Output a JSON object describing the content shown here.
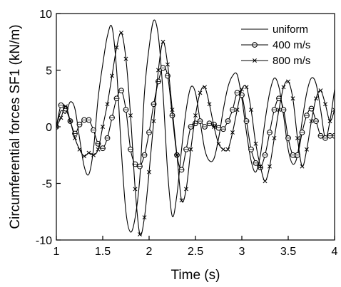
{
  "chart_data": {
    "type": "line",
    "xlabel": "Time (s)",
    "ylabel": "Circumferential forces SF1 (kN/m)",
    "xlim": [
      1,
      4
    ],
    "ylim": [
      -10,
      10
    ],
    "grid": false,
    "legend_position": "top-right",
    "x_ticks": [
      {
        "value": 1,
        "label": "1"
      },
      {
        "value": 1.5,
        "label": "1.5"
      },
      {
        "value": 2,
        "label": "2"
      },
      {
        "value": 2.5,
        "label": "2.5"
      },
      {
        "value": 3,
        "label": "3"
      },
      {
        "value": 3.5,
        "label": "3.5"
      },
      {
        "value": 4,
        "label": "4"
      }
    ],
    "y_ticks": [
      {
        "value": -10,
        "label": "-10"
      },
      {
        "value": -5,
        "label": "-5"
      },
      {
        "value": 0,
        "label": "0"
      },
      {
        "value": 5,
        "label": "5"
      },
      {
        "value": 10,
        "label": "10"
      }
    ],
    "series": [
      {
        "name": "uniform",
        "marker": "none",
        "points": [
          [
            1.0,
            0.0
          ],
          [
            1.05,
            1.4
          ],
          [
            1.1,
            1.2
          ],
          [
            1.15,
            2.2
          ],
          [
            1.2,
            1.6
          ],
          [
            1.25,
            -1.0
          ],
          [
            1.3,
            -3.5
          ],
          [
            1.35,
            -4.2
          ],
          [
            1.4,
            -2.0
          ],
          [
            1.45,
            2.5
          ],
          [
            1.5,
            5.5
          ],
          [
            1.55,
            8.0
          ],
          [
            1.6,
            8.8
          ],
          [
            1.65,
            5.0
          ],
          [
            1.7,
            -2.0
          ],
          [
            1.75,
            -7.5
          ],
          [
            1.8,
            -9.3
          ],
          [
            1.85,
            -8.0
          ],
          [
            1.9,
            -4.5
          ],
          [
            1.95,
            3.0
          ],
          [
            2.0,
            7.0
          ],
          [
            2.05,
            9.4
          ],
          [
            2.1,
            8.0
          ],
          [
            2.15,
            3.0
          ],
          [
            2.2,
            -4.0
          ],
          [
            2.25,
            -7.9
          ],
          [
            2.3,
            -6.0
          ],
          [
            2.35,
            -2.0
          ],
          [
            2.4,
            1.5
          ],
          [
            2.45,
            3.5
          ],
          [
            2.5,
            3.0
          ],
          [
            2.55,
            0.5
          ],
          [
            2.6,
            -2.0
          ],
          [
            2.65,
            -3.0
          ],
          [
            2.7,
            -2.8
          ],
          [
            2.75,
            -1.0
          ],
          [
            2.8,
            1.5
          ],
          [
            2.85,
            3.5
          ],
          [
            2.9,
            4.5
          ],
          [
            2.95,
            4.6
          ],
          [
            3.0,
            2.5
          ],
          [
            3.05,
            -0.5
          ],
          [
            3.1,
            -3.0
          ],
          [
            3.15,
            -4.0
          ],
          [
            3.2,
            -2.5
          ],
          [
            3.25,
            0.5
          ],
          [
            3.3,
            3.0
          ],
          [
            3.35,
            4.3
          ],
          [
            3.4,
            3.5
          ],
          [
            3.45,
            1.0
          ],
          [
            3.5,
            -2.0
          ],
          [
            3.55,
            -3.3
          ],
          [
            3.6,
            -2.5
          ],
          [
            3.65,
            0.5
          ],
          [
            3.7,
            3.0
          ],
          [
            3.75,
            4.3
          ],
          [
            3.8,
            3.8
          ],
          [
            3.85,
            1.5
          ],
          [
            3.9,
            -1.0
          ],
          [
            3.95,
            0.5
          ],
          [
            4.0,
            3.3
          ]
        ]
      },
      {
        "name": "400 m/s",
        "marker": "circle",
        "points": [
          [
            1.0,
            0.0
          ],
          [
            1.05,
            1.9
          ],
          [
            1.1,
            1.6
          ],
          [
            1.15,
            0.5
          ],
          [
            1.2,
            -0.6
          ],
          [
            1.25,
            0.2
          ],
          [
            1.3,
            0.6
          ],
          [
            1.35,
            0.6
          ],
          [
            1.4,
            -0.3
          ],
          [
            1.45,
            -1.5
          ],
          [
            1.5,
            -1.9
          ],
          [
            1.55,
            -1.0
          ],
          [
            1.6,
            0.8
          ],
          [
            1.65,
            2.5
          ],
          [
            1.7,
            3.2
          ],
          [
            1.75,
            1.5
          ],
          [
            1.8,
            -2.0
          ],
          [
            1.85,
            -3.3
          ],
          [
            1.9,
            -3.5
          ],
          [
            1.95,
            -2.5
          ],
          [
            2.0,
            -0.5
          ],
          [
            2.05,
            2.0
          ],
          [
            2.1,
            4.0
          ],
          [
            2.15,
            5.2
          ],
          [
            2.2,
            4.5
          ],
          [
            2.25,
            1.0
          ],
          [
            2.3,
            -2.5
          ],
          [
            2.35,
            -3.8
          ],
          [
            2.4,
            -2.0
          ],
          [
            2.45,
            0.0
          ],
          [
            2.5,
            0.3
          ],
          [
            2.55,
            0.5
          ],
          [
            2.6,
            0.0
          ],
          [
            2.65,
            0.3
          ],
          [
            2.7,
            0.2
          ],
          [
            2.75,
            -0.1
          ],
          [
            2.8,
            -0.2
          ],
          [
            2.85,
            0.5
          ],
          [
            2.9,
            1.5
          ],
          [
            2.95,
            3.0
          ],
          [
            3.0,
            2.8
          ],
          [
            3.05,
            0.5
          ],
          [
            3.1,
            -2.0
          ],
          [
            3.15,
            -3.2
          ],
          [
            3.2,
            -3.6
          ],
          [
            3.25,
            -2.5
          ],
          [
            3.3,
            -0.5
          ],
          [
            3.35,
            1.5
          ],
          [
            3.4,
            2.5
          ],
          [
            3.45,
            1.5
          ],
          [
            3.5,
            -1.0
          ],
          [
            3.55,
            -2.5
          ],
          [
            3.6,
            -2.5
          ],
          [
            3.65,
            -0.5
          ],
          [
            3.7,
            1.0
          ],
          [
            3.75,
            1.6
          ],
          [
            3.8,
            0.5
          ],
          [
            3.85,
            -0.8
          ],
          [
            3.9,
            -1.0
          ],
          [
            3.95,
            -0.8
          ],
          [
            4.0,
            -0.8
          ]
        ]
      },
      {
        "name": "800 m/s",
        "marker": "cross",
        "points": [
          [
            1.0,
            0.0
          ],
          [
            1.05,
            0.8
          ],
          [
            1.1,
            1.8
          ],
          [
            1.15,
            0.5
          ],
          [
            1.2,
            -1.0
          ],
          [
            1.25,
            -2.0
          ],
          [
            1.3,
            -2.6
          ],
          [
            1.35,
            -2.3
          ],
          [
            1.4,
            -2.5
          ],
          [
            1.45,
            -2.0
          ],
          [
            1.5,
            0.0
          ],
          [
            1.55,
            2.0
          ],
          [
            1.6,
            4.5
          ],
          [
            1.65,
            7.0
          ],
          [
            1.7,
            8.3
          ],
          [
            1.75,
            6.0
          ],
          [
            1.8,
            1.0
          ],
          [
            1.85,
            -5.5
          ],
          [
            1.9,
            -9.5
          ],
          [
            1.95,
            -8.0
          ],
          [
            2.0,
            -4.0
          ],
          [
            2.05,
            0.5
          ],
          [
            2.1,
            5.0
          ],
          [
            2.15,
            7.5
          ],
          [
            2.2,
            5.5
          ],
          [
            2.25,
            1.5
          ],
          [
            2.3,
            -2.5
          ],
          [
            2.35,
            -6.5
          ],
          [
            2.4,
            -5.5
          ],
          [
            2.45,
            -2.0
          ],
          [
            2.5,
            1.0
          ],
          [
            2.55,
            3.0
          ],
          [
            2.6,
            3.5
          ],
          [
            2.65,
            2.0
          ],
          [
            2.7,
            0.0
          ],
          [
            2.75,
            -1.5
          ],
          [
            2.8,
            -2.0
          ],
          [
            2.85,
            -2.0
          ],
          [
            2.9,
            -0.5
          ],
          [
            2.95,
            1.5
          ],
          [
            3.0,
            3.3
          ],
          [
            3.05,
            3.5
          ],
          [
            3.1,
            1.5
          ],
          [
            3.15,
            -1.5
          ],
          [
            3.2,
            -3.5
          ],
          [
            3.25,
            -4.8
          ],
          [
            3.3,
            -3.5
          ],
          [
            3.35,
            -1.0
          ],
          [
            3.4,
            1.5
          ],
          [
            3.45,
            3.5
          ],
          [
            3.5,
            4.0
          ],
          [
            3.55,
            2.5
          ],
          [
            3.6,
            -1.0
          ],
          [
            3.65,
            -3.5
          ],
          [
            3.7,
            -2.0
          ],
          [
            3.75,
            0.5
          ],
          [
            3.8,
            2.5
          ],
          [
            3.85,
            3.2
          ],
          [
            3.9,
            2.0
          ],
          [
            3.95,
            0.5
          ],
          [
            4.0,
            1.5
          ]
        ]
      }
    ]
  }
}
